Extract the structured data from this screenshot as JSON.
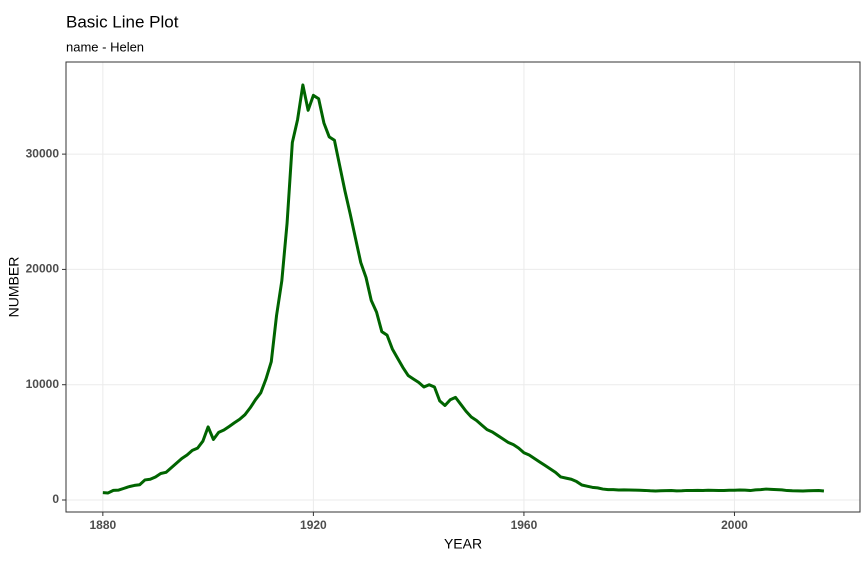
{
  "chart_data": {
    "type": "line",
    "title": "Basic Line Plot",
    "subtitle": "name - Helen",
    "x_label": "YEAR",
    "y_label": "NUMBER",
    "x": [
      1880,
      1881,
      1882,
      1883,
      1884,
      1885,
      1886,
      1887,
      1888,
      1889,
      1890,
      1891,
      1892,
      1893,
      1894,
      1895,
      1896,
      1897,
      1898,
      1899,
      1900,
      1901,
      1902,
      1903,
      1904,
      1905,
      1906,
      1907,
      1908,
      1909,
      1910,
      1911,
      1912,
      1913,
      1914,
      1915,
      1916,
      1917,
      1918,
      1919,
      1920,
      1921,
      1922,
      1923,
      1924,
      1925,
      1926,
      1927,
      1928,
      1929,
      1930,
      1931,
      1932,
      1933,
      1934,
      1935,
      1936,
      1937,
      1938,
      1939,
      1940,
      1941,
      1942,
      1943,
      1944,
      1945,
      1946,
      1947,
      1948,
      1949,
      1950,
      1951,
      1952,
      1953,
      1954,
      1955,
      1956,
      1957,
      1958,
      1959,
      1960,
      1961,
      1962,
      1963,
      1964,
      1965,
      1966,
      1967,
      1968,
      1969,
      1970,
      1971,
      1972,
      1973,
      1974,
      1975,
      1976,
      1977,
      1978,
      1979,
      1980,
      1981,
      1982,
      1983,
      1984,
      1985,
      1986,
      1987,
      1988,
      1989,
      1990,
      1991,
      1992,
      1993,
      1994,
      1995,
      1996,
      1997,
      1998,
      1999,
      2000,
      2001,
      2002,
      2003,
      2004,
      2005,
      2006,
      2007,
      2008,
      2009,
      2010,
      2011,
      2012,
      2013,
      2014,
      2015,
      2016,
      2017
    ],
    "series": [
      {
        "name": "Helen",
        "color": "#006400",
        "values": [
          636,
          612,
          838,
          862,
          1009,
          1162,
          1267,
          1323,
          1740,
          1800,
          2000,
          2300,
          2400,
          2800,
          3200,
          3600,
          3900,
          4300,
          4500,
          5100,
          6343,
          5250,
          5870,
          6070,
          6380,
          6700,
          7000,
          7400,
          8000,
          8700,
          9300,
          10500,
          12000,
          16000,
          19000,
          24000,
          31000,
          33000,
          36000,
          33800,
          35100,
          34800,
          32700,
          31500,
          31200,
          29000,
          26800,
          24800,
          22700,
          20600,
          19300,
          17300,
          16300,
          14600,
          14300,
          13100,
          12300,
          11500,
          10800,
          10500,
          10200,
          9800,
          10000,
          9800,
          8600,
          8200,
          8700,
          8900,
          8300,
          7700,
          7200,
          6900,
          6500,
          6100,
          5900,
          5600,
          5300,
          5000,
          4800,
          4500,
          4100,
          3900,
          3600,
          3300,
          3000,
          2700,
          2400,
          2000,
          1900,
          1800,
          1600,
          1300,
          1200,
          1100,
          1050,
          950,
          900,
          900,
          870,
          880,
          870,
          860,
          850,
          830,
          800,
          780,
          800,
          810,
          820,
          790,
          800,
          830,
          820,
          840,
          830,
          850,
          840,
          820,
          830,
          850,
          850,
          870,
          860,
          820,
          880,
          900,
          950,
          920,
          900,
          880,
          820,
          800,
          790,
          780,
          800,
          810,
          820,
          780
        ]
      }
    ],
    "xlim": [
      1873,
      2023.85
    ],
    "ylim": [
      -1040,
      37990
    ],
    "xticks": [
      1880,
      1920,
      1960,
      2000
    ],
    "yticks": [
      0,
      10000,
      20000,
      30000
    ],
    "grid": true
  }
}
